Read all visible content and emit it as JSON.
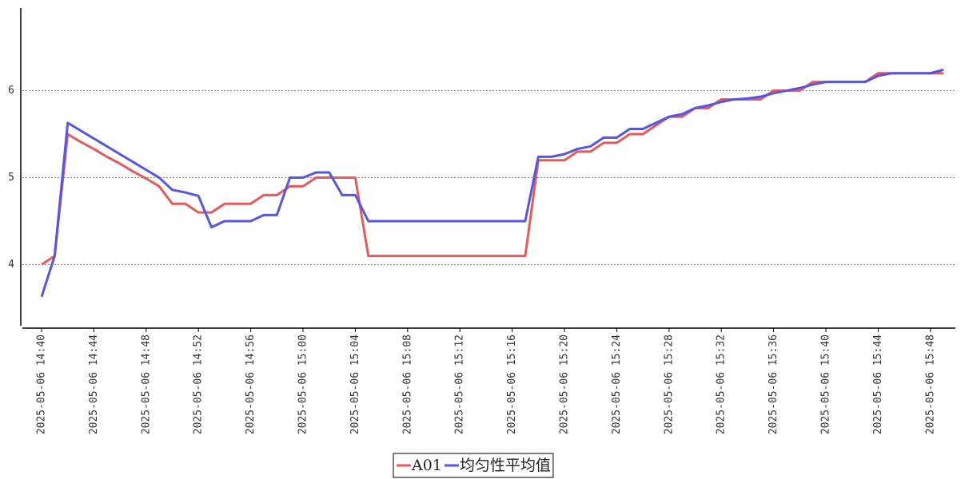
{
  "chart_data": {
    "type": "line",
    "x": [
      "2025-05-06 14:40",
      "2025-05-06 14:41",
      "2025-05-06 14:42",
      "2025-05-06 14:43",
      "2025-05-06 14:44",
      "2025-05-06 14:45",
      "2025-05-06 14:46",
      "2025-05-06 14:47",
      "2025-05-06 14:48",
      "2025-05-06 14:49",
      "2025-05-06 14:50",
      "2025-05-06 14:51",
      "2025-05-06 14:52",
      "2025-05-06 14:53",
      "2025-05-06 14:54",
      "2025-05-06 14:55",
      "2025-05-06 14:56",
      "2025-05-06 14:57",
      "2025-05-06 14:58",
      "2025-05-06 14:59",
      "2025-05-06 15:00",
      "2025-05-06 15:01",
      "2025-05-06 15:02",
      "2025-05-06 15:03",
      "2025-05-06 15:04",
      "2025-05-06 15:05",
      "2025-05-06 15:06",
      "2025-05-06 15:07",
      "2025-05-06 15:08",
      "2025-05-06 15:09",
      "2025-05-06 15:10",
      "2025-05-06 15:11",
      "2025-05-06 15:12",
      "2025-05-06 15:13",
      "2025-05-06 15:14",
      "2025-05-06 15:15",
      "2025-05-06 15:16",
      "2025-05-06 15:17",
      "2025-05-06 15:18",
      "2025-05-06 15:19",
      "2025-05-06 15:20",
      "2025-05-06 15:21",
      "2025-05-06 15:22",
      "2025-05-06 15:23",
      "2025-05-06 15:24",
      "2025-05-06 15:25",
      "2025-05-06 15:26",
      "2025-05-06 15:27",
      "2025-05-06 15:28",
      "2025-05-06 15:29",
      "2025-05-06 15:30",
      "2025-05-06 15:31",
      "2025-05-06 15:32",
      "2025-05-06 15:33",
      "2025-05-06 15:34",
      "2025-05-06 15:35",
      "2025-05-06 15:36",
      "2025-05-06 15:37",
      "2025-05-06 15:38",
      "2025-05-06 15:39",
      "2025-05-06 15:40",
      "2025-05-06 15:41",
      "2025-05-06 15:42",
      "2025-05-06 15:43",
      "2025-05-06 15:44",
      "2025-05-06 15:45",
      "2025-05-06 15:46",
      "2025-05-06 15:47",
      "2025-05-06 15:48",
      "2025-05-06 15:49"
    ],
    "xticks": [
      "2025-05-06 14:40",
      "2025-05-06 14:44",
      "2025-05-06 14:48",
      "2025-05-06 14:52",
      "2025-05-06 14:56",
      "2025-05-06 15:00",
      "2025-05-06 15:04",
      "2025-05-06 15:08",
      "2025-05-06 15:12",
      "2025-05-06 15:16",
      "2025-05-06 15:20",
      "2025-05-06 15:24",
      "2025-05-06 15:28",
      "2025-05-06 15:32",
      "2025-05-06 15:36",
      "2025-05-06 15:40",
      "2025-05-06 15:44",
      "2025-05-06 15:48"
    ],
    "series": [
      {
        "name": "A01",
        "color": "#e8595a",
        "values": [
          4.0,
          4.1,
          5.5,
          5.41,
          5.33,
          5.24,
          5.16,
          5.07,
          4.99,
          4.9,
          4.7,
          4.7,
          4.6,
          4.6,
          4.7,
          4.7,
          4.7,
          4.8,
          4.8,
          4.9,
          4.9,
          5.0,
          5.0,
          5.0,
          5.0,
          4.1,
          4.1,
          4.1,
          4.1,
          4.1,
          4.1,
          4.1,
          4.1,
          4.1,
          4.1,
          4.1,
          4.1,
          4.1,
          5.2,
          5.2,
          5.2,
          5.3,
          5.3,
          5.4,
          5.4,
          5.5,
          5.5,
          5.6,
          5.7,
          5.7,
          5.8,
          5.8,
          5.9,
          5.9,
          5.9,
          5.9,
          6.0,
          6.0,
          6.0,
          6.1,
          6.1,
          6.1,
          6.1,
          6.1,
          6.2,
          6.2,
          6.2,
          6.2,
          6.2,
          6.2
        ]
      },
      {
        "name": "均匀性平均值",
        "color": "#5656e6",
        "values": [
          3.63,
          4.1,
          5.63,
          5.54,
          5.45,
          5.36,
          5.27,
          5.18,
          5.09,
          5.0,
          4.86,
          4.83,
          4.79,
          4.43,
          4.5,
          4.5,
          4.5,
          4.57,
          4.57,
          5.0,
          5.0,
          5.06,
          5.06,
          4.8,
          4.8,
          4.5,
          4.5,
          4.5,
          4.5,
          4.5,
          4.5,
          4.5,
          4.5,
          4.5,
          4.5,
          4.5,
          4.5,
          4.5,
          5.24,
          5.24,
          5.27,
          5.33,
          5.36,
          5.46,
          5.46,
          5.56,
          5.56,
          5.63,
          5.7,
          5.73,
          5.8,
          5.83,
          5.87,
          5.9,
          5.91,
          5.93,
          5.97,
          6.0,
          6.03,
          6.07,
          6.1,
          6.1,
          6.1,
          6.1,
          6.17,
          6.2,
          6.2,
          6.2,
          6.2,
          6.24
        ]
      }
    ],
    "ylim": [
      3.28,
      6.95
    ],
    "yticks": [
      4,
      5,
      6
    ],
    "grid": true,
    "legend": "bottom"
  }
}
